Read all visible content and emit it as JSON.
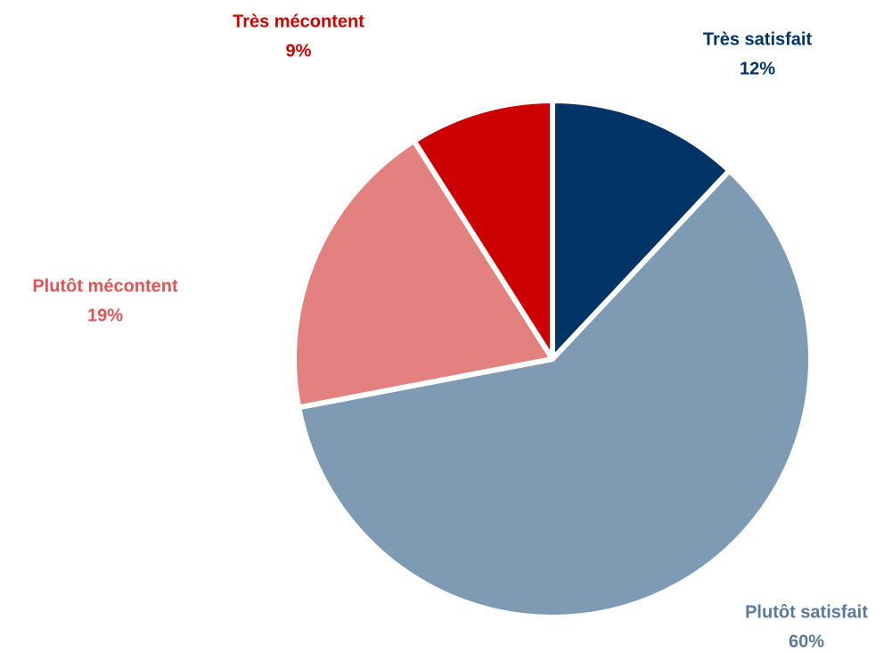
{
  "chart_data": {
    "type": "pie",
    "categories": [
      "Très satisfait",
      "Plutôt satisfait",
      "Plutôt mécontent",
      "Très mécontent"
    ],
    "values": [
      12,
      60,
      19,
      9
    ],
    "value_labels": [
      "12%",
      "60%",
      "19%",
      "9%"
    ],
    "colors": [
      "#003366",
      "#7f9bb4",
      "#e38080",
      "#cc0000"
    ],
    "label_colors": [
      "#003366",
      "#5b7a99",
      "#e05555",
      "#cc0000"
    ]
  }
}
